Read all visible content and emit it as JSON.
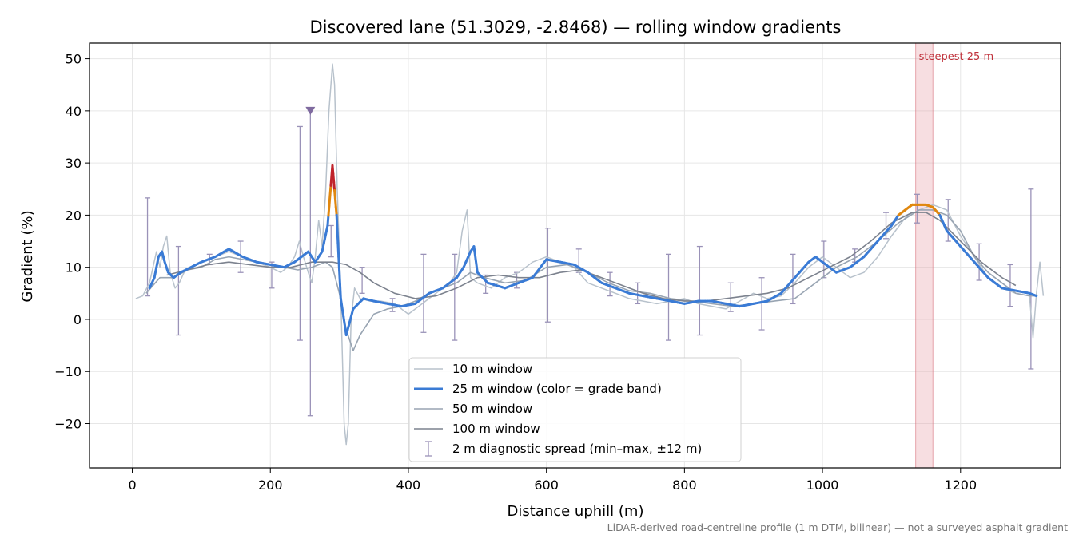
{
  "chart_data": {
    "type": "line",
    "title": "Discovered lane (51.3029, -2.8468) — rolling window gradients",
    "xlabel": "Distance uphill (m)",
    "ylabel": "Gradient (%)",
    "xlim": [
      -62,
      1345
    ],
    "ylim": [
      -28.5,
      53
    ],
    "x_ticks": [
      0,
      200,
      400,
      600,
      800,
      1000,
      1200
    ],
    "x_tick_labels": [
      "0",
      "200",
      "400",
      "600",
      "800",
      "1000",
      "1200"
    ],
    "y_ticks": [
      50,
      40,
      30,
      20,
      10,
      0,
      -10,
      -20
    ],
    "y_tick_labels": [
      "50",
      "40",
      "30",
      "20",
      "10",
      "0",
      "−10",
      "−20"
    ],
    "grid": true,
    "legend_position": "lower center",
    "footnote": "LiDAR-derived road-centreline profile (1 m DTM, bilinear) — not a surveyed asphalt gradient",
    "highlight": {
      "label": "steepest 25 m",
      "x_start": 1135,
      "x_end": 1160,
      "color": "#e8a0a8"
    },
    "marker": {
      "x": 258,
      "y": 40,
      "color": "#7f6a9f"
    },
    "colors": {
      "w10": "#b8c2cc",
      "w25": "#3a7bd5",
      "w50": "#98a4b2",
      "w100": "#7c828e",
      "spread": "#9a92b8",
      "orange": "#e0870f",
      "red": "#c0232b"
    },
    "series": [
      {
        "name": "10 m window",
        "key": "w10",
        "x": [
          5,
          15,
          25,
          30,
          35,
          40,
          45,
          50,
          55,
          62,
          68,
          75,
          85,
          100,
          120,
          140,
          160,
          180,
          200,
          215,
          225,
          235,
          242,
          248,
          255,
          260,
          265,
          270,
          275,
          280,
          285,
          290,
          293,
          297,
          302,
          307,
          310,
          313,
          317,
          322,
          330,
          345,
          360,
          380,
          400,
          420,
          440,
          460,
          470,
          478,
          485,
          490,
          500,
          520,
          540,
          560,
          580,
          600,
          620,
          640,
          660,
          680,
          700,
          720,
          740,
          760,
          780,
          800,
          820,
          840,
          860,
          880,
          900,
          920,
          940,
          960,
          980,
          1000,
          1020,
          1040,
          1060,
          1080,
          1100,
          1120,
          1140,
          1160,
          1180,
          1200,
          1220,
          1240,
          1260,
          1280,
          1300,
          1305,
          1310,
          1315,
          1320
        ],
        "y": [
          4,
          4.5,
          7,
          10,
          13,
          10,
          14,
          16,
          9,
          6,
          7,
          9,
          10,
          11,
          12,
          13,
          12,
          11,
          10,
          9,
          10,
          12,
          15,
          12,
          9,
          7,
          12,
          19,
          14,
          24,
          40,
          49,
          45,
          25,
          5,
          -20,
          -24,
          -20,
          0,
          6,
          4,
          3.5,
          3.5,
          3,
          1,
          3,
          5,
          7,
          9,
          17,
          21,
          8,
          7,
          6,
          8,
          9,
          11,
          12,
          11,
          10,
          7,
          6,
          5,
          4,
          3.5,
          3,
          3.5,
          4,
          3,
          2.5,
          2,
          3.5,
          5,
          4,
          4.5,
          7,
          10,
          12,
          10,
          8,
          9,
          12,
          16,
          19.5,
          21,
          22,
          21,
          16,
          12,
          8,
          6,
          5,
          4.5,
          -3.5,
          5,
          11,
          4.5
        ]
      },
      {
        "name": "25 m window (color = grade band)",
        "key": "w25",
        "x": [
          25,
          32,
          38,
          43,
          47,
          52,
          60,
          70,
          85,
          100,
          120,
          140,
          160,
          180,
          200,
          220,
          235,
          245,
          255,
          265,
          275,
          283,
          290,
          296,
          302,
          310,
          320,
          335,
          350,
          370,
          390,
          410,
          430,
          450,
          470,
          480,
          490,
          495,
          500,
          515,
          540,
          560,
          580,
          600,
          620,
          640,
          660,
          680,
          700,
          720,
          740,
          760,
          780,
          800,
          820,
          840,
          860,
          880,
          900,
          920,
          940,
          960,
          980,
          990,
          1000,
          1020,
          1040,
          1060,
          1080,
          1100,
          1110,
          1120,
          1130,
          1140,
          1150,
          1160,
          1170,
          1180,
          1200,
          1220,
          1240,
          1260,
          1280,
          1300,
          1310
        ],
        "y": [
          6,
          8,
          12,
          13,
          11,
          9,
          8,
          9,
          10,
          11,
          12,
          13.5,
          12,
          11,
          10.5,
          10,
          11,
          12,
          13,
          11,
          13,
          18,
          29.5,
          20,
          4,
          -3,
          2,
          4,
          3.5,
          3,
          2.5,
          3,
          5,
          6,
          8,
          10,
          13,
          14,
          9,
          7,
          6,
          7,
          8,
          11.5,
          11,
          10.5,
          9,
          7,
          6,
          5,
          4.5,
          4,
          3.5,
          3,
          3.5,
          3.5,
          3,
          2.5,
          3,
          3.5,
          5,
          8,
          11,
          12,
          11,
          9,
          10,
          12,
          15,
          18,
          20,
          21,
          22,
          22,
          22,
          21.5,
          20,
          17,
          14,
          11,
          8,
          6,
          5.5,
          5,
          4.5
        ]
      },
      {
        "name": "50 m window",
        "key": "w50",
        "x": [
          20,
          40,
          60,
          80,
          100,
          120,
          140,
          160,
          180,
          200,
          220,
          240,
          260,
          280,
          290,
          300,
          310,
          320,
          330,
          350,
          370,
          390,
          410,
          430,
          450,
          470,
          490,
          510,
          540,
          570,
          600,
          630,
          660,
          690,
          720,
          750,
          780,
          810,
          840,
          870,
          900,
          930,
          960,
          990,
          1020,
          1050,
          1080,
          1110,
          1140,
          1160,
          1180,
          1200,
          1220,
          1240,
          1260,
          1280,
          1300,
          1310
        ],
        "y": [
          5,
          8,
          8,
          9.5,
          10,
          11.5,
          12,
          11.5,
          11,
          10.5,
          10,
          9.5,
          10,
          11,
          10,
          5,
          -2,
          -6,
          -3,
          1,
          2,
          2.5,
          3.5,
          5,
          6,
          7,
          9,
          8,
          7,
          7.5,
          10,
          10.5,
          9,
          7,
          5.5,
          5,
          4,
          3.5,
          3,
          2.5,
          3,
          3.5,
          4,
          7,
          10,
          12,
          15,
          18.5,
          21,
          21,
          20,
          17,
          12,
          9,
          7,
          5,
          4.5,
          4.5
        ]
      },
      {
        "name": "100 m window",
        "key": "w100",
        "x": [
          50,
          80,
          110,
          140,
          170,
          200,
          230,
          260,
          290,
          310,
          330,
          350,
          380,
          410,
          440,
          470,
          500,
          530,
          560,
          590,
          620,
          650,
          680,
          710,
          740,
          770,
          800,
          830,
          860,
          890,
          920,
          950,
          980,
          1010,
          1040,
          1070,
          1100,
          1130,
          1150,
          1170,
          1200,
          1230,
          1260,
          1280
        ],
        "y": [
          8.5,
          9.5,
          10.5,
          11,
          10.5,
          10,
          10,
          11,
          11,
          10.5,
          9,
          7,
          5,
          4,
          4.5,
          6,
          8,
          8.5,
          8,
          8,
          9,
          9.5,
          8,
          6.5,
          5,
          4,
          3.5,
          3.5,
          4,
          4.5,
          5,
          6,
          8,
          10,
          12,
          15,
          18.5,
          20.5,
          20.5,
          19,
          15,
          11,
          8,
          6.5
        ]
      }
    ],
    "error_bars": {
      "name": "2 m diagnostic spread (min–max, ±12 m)",
      "points": [
        {
          "x": 22,
          "low": 4.5,
          "high": 23.3
        },
        {
          "x": 67,
          "low": -3,
          "high": 14
        },
        {
          "x": 112,
          "low": 10.5,
          "high": 12.5
        },
        {
          "x": 157,
          "low": 9,
          "high": 15
        },
        {
          "x": 202,
          "low": 6,
          "high": 11
        },
        {
          "x": 243,
          "low": -4,
          "high": 37
        },
        {
          "x": 258,
          "low": -18.5,
          "high": 40
        },
        {
          "x": 288,
          "low": 12,
          "high": 18
        },
        {
          "x": 333,
          "low": 5,
          "high": 10
        },
        {
          "x": 377,
          "low": 1.5,
          "high": 4
        },
        {
          "x": 422,
          "low": -2.5,
          "high": 12.5
        },
        {
          "x": 467,
          "low": -4,
          "high": 12.5
        },
        {
          "x": 512,
          "low": 5,
          "high": 8.5
        },
        {
          "x": 557,
          "low": 6,
          "high": 9
        },
        {
          "x": 602,
          "low": -0.5,
          "high": 17.5
        },
        {
          "x": 647,
          "low": 9,
          "high": 13.5
        },
        {
          "x": 692,
          "low": 4.5,
          "high": 9
        },
        {
          "x": 732,
          "low": 3,
          "high": 7
        },
        {
          "x": 777,
          "low": -4,
          "high": 12.5
        },
        {
          "x": 822,
          "low": -3,
          "high": 14
        },
        {
          "x": 867,
          "low": 1.5,
          "high": 7
        },
        {
          "x": 912,
          "low": -2,
          "high": 8
        },
        {
          "x": 957,
          "low": 3,
          "high": 12.5
        },
        {
          "x": 1002,
          "low": 8,
          "high": 15
        },
        {
          "x": 1047,
          "low": 11,
          "high": 13.5
        },
        {
          "x": 1092,
          "low": 15.5,
          "high": 20.5
        },
        {
          "x": 1137,
          "low": 18.5,
          "high": 24
        },
        {
          "x": 1182,
          "low": 15,
          "high": 23
        },
        {
          "x": 1227,
          "low": 7.5,
          "high": 14.5
        },
        {
          "x": 1272,
          "low": 2.5,
          "high": 10.5
        },
        {
          "x": 1302,
          "low": -9.5,
          "high": 25
        }
      ]
    },
    "grade_bands": [
      {
        "from": 0,
        "to": 20,
        "color": "#3a7bd5"
      },
      {
        "from": 20,
        "to": 25,
        "color": "#e0870f"
      },
      {
        "from": 25,
        "to": 100,
        "color": "#c0232b"
      }
    ]
  }
}
